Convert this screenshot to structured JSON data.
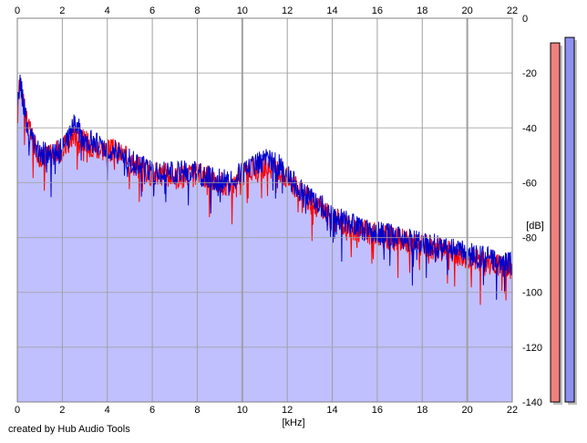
{
  "chart_data": {
    "type": "area",
    "xlabel": "[kHz]",
    "ylabel": "[dB]",
    "xlim": [
      0,
      22
    ],
    "ylim": [
      -140,
      0
    ],
    "x_ticks": [
      "0",
      "2",
      "4",
      "6",
      "8",
      "10",
      "12",
      "14",
      "16",
      "18",
      "20",
      "22"
    ],
    "y_ticks": [
      "0",
      "-20",
      "-40",
      "-60",
      "-80",
      "-100",
      "-120",
      "-140"
    ],
    "grid": true,
    "colors": {
      "fill": "#c0c0ff",
      "red_trace": "#ff0000",
      "blue_trace": "#0000cc",
      "left_meter": "#f08080",
      "right_meter": "#9090f0",
      "grid": "#a0a0a0"
    },
    "series": [
      {
        "color": "red",
        "x": [
          0.0,
          0.1,
          0.2,
          0.3,
          0.5,
          0.8,
          1.0,
          1.5,
          2.0,
          2.3,
          2.5,
          3.0,
          3.5,
          4.0,
          4.5,
          5.0,
          5.5,
          6.0,
          6.5,
          7.0,
          7.5,
          8.0,
          8.5,
          9.0,
          9.5,
          10.0,
          10.5,
          11.0,
          11.5,
          12.0,
          12.5,
          13.0,
          13.5,
          14.0,
          14.5,
          15.0,
          15.5,
          16.0,
          16.5,
          17.0,
          17.5,
          18.0,
          18.5,
          19.0,
          19.5,
          20.0,
          20.5,
          21.0,
          21.5,
          22.0
        ],
        "y": [
          -38,
          -20,
          -25,
          -31,
          -40,
          -47,
          -50,
          -50,
          -48,
          -45,
          -42,
          -45,
          -47,
          -48,
          -49,
          -52,
          -55,
          -57,
          -57,
          -58,
          -58,
          -57,
          -58,
          -60,
          -61,
          -57,
          -55,
          -54,
          -55,
          -58,
          -63,
          -67,
          -69,
          -73,
          -75,
          -77,
          -78,
          -79,
          -80,
          -81,
          -82,
          -83,
          -84,
          -85,
          -86,
          -87,
          -88,
          -89,
          -90,
          -91
        ]
      },
      {
        "color": "blue",
        "x": [
          0.0,
          0.1,
          0.2,
          0.3,
          0.5,
          0.8,
          1.0,
          1.5,
          2.0,
          2.3,
          2.5,
          3.0,
          3.5,
          4.0,
          4.5,
          5.0,
          5.5,
          6.0,
          6.5,
          7.0,
          7.5,
          8.0,
          8.5,
          9.0,
          9.5,
          10.0,
          10.5,
          11.0,
          11.5,
          12.0,
          12.5,
          13.0,
          13.5,
          14.0,
          14.5,
          15.0,
          15.5,
          16.0,
          16.5,
          17.0,
          17.5,
          18.0,
          18.5,
          19.0,
          19.5,
          20.0,
          20.5,
          21.0,
          21.5,
          22.0
        ],
        "y": [
          -36,
          -23,
          -27,
          -32,
          -42,
          -47,
          -49,
          -50,
          -48,
          -43,
          -38,
          -44,
          -46,
          -47,
          -49,
          -52,
          -54,
          -56,
          -56,
          -57,
          -56,
          -57,
          -58,
          -59,
          -60,
          -56,
          -53,
          -52,
          -53,
          -57,
          -62,
          -66,
          -68,
          -72,
          -74,
          -76,
          -77,
          -78,
          -79,
          -80,
          -81,
          -82,
          -83,
          -84,
          -85,
          -86,
          -87,
          -88,
          -89,
          -90
        ]
      }
    ],
    "level_meters": [
      {
        "color": "red",
        "level_db": -9
      },
      {
        "color": "blue",
        "level_db": -7
      }
    ]
  },
  "footer": {
    "credit": "created by Hub Audio Tools"
  }
}
